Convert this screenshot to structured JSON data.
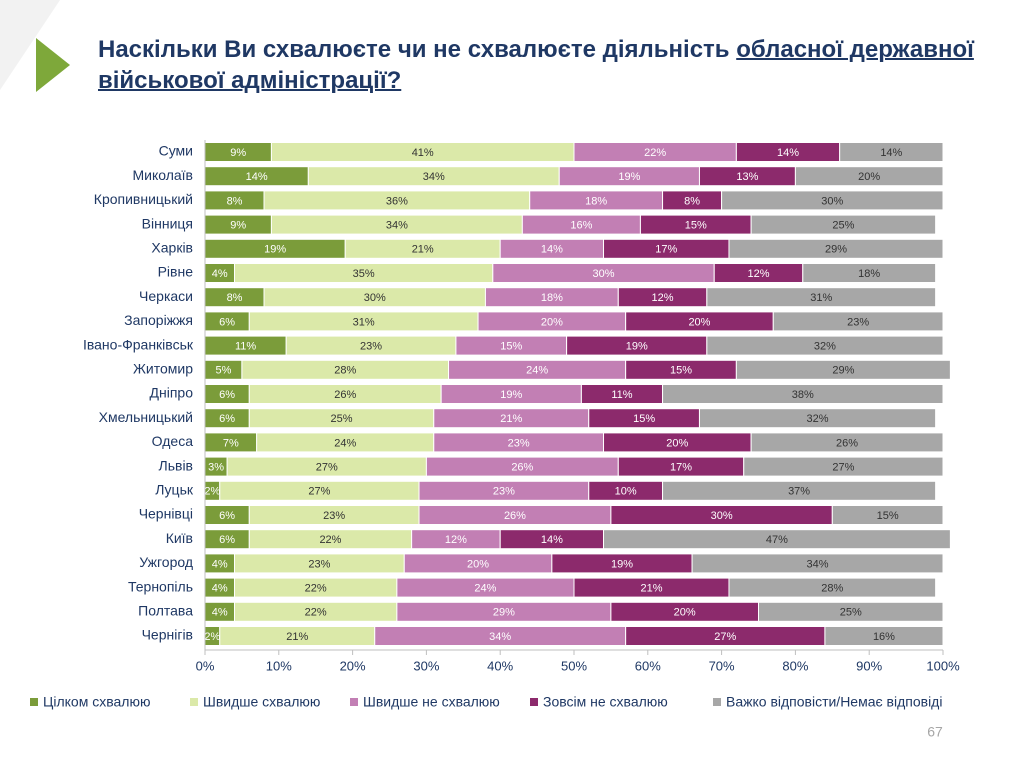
{
  "chart_data": {
    "type": "stacked-bar-horizontal",
    "title": "Наскільки Ви схвалюєте чи не схвалюєте діяльність",
    "title_underlined": "обласної державної військової адміністрації?",
    "categories": [
      "Суми",
      "Миколаїв",
      "Кропивницький",
      "Вінниця",
      "Харків",
      "Рівне",
      "Черкаси",
      "Запоріжжя",
      "Івано-Франківськ",
      "Житомир",
      "Дніпро",
      "Хмельницький",
      "Одеса",
      "Львів",
      "Луцьк",
      "Чернівці",
      "Київ",
      "Ужгород",
      "Тернопіль",
      "Полтава",
      "Чернігів"
    ],
    "series": [
      {
        "name": "Цілком схвалюю",
        "color": "#7b9c3a",
        "label_color": "#ffffff",
        "values": [
          9,
          14,
          8,
          9,
          19,
          4,
          8,
          6,
          11,
          5,
          6,
          6,
          7,
          3,
          2,
          6,
          6,
          4,
          4,
          4,
          2
        ],
        "value_labels": [
          "9%",
          "14%",
          "8%",
          "9%",
          "19%",
          "4%",
          "8%",
          "6%",
          "11%",
          "5%",
          "6%",
          "6%",
          "7%",
          "3%",
          "2%",
          "6%",
          "6%",
          "4%",
          "4%",
          "4%",
          "2%"
        ]
      },
      {
        "name": "Швидше схвалюю",
        "color": "#dbe9a9",
        "label_color": "#333333",
        "values": [
          41,
          34,
          36,
          34,
          21,
          35,
          30,
          31,
          23,
          28,
          26,
          25,
          24,
          27,
          27,
          23,
          22,
          23,
          22,
          22,
          21
        ],
        "value_labels": [
          "41%",
          "34%",
          "36%",
          "34%",
          "21%",
          "35%",
          "30%",
          "31%",
          "23%",
          "28%",
          "26%",
          "25%",
          "24%",
          "27%",
          "27%",
          "23%",
          "22%",
          "23%",
          "22%",
          "22%",
          "21%"
        ]
      },
      {
        "name": "Швидше не схвалюю",
        "color": "#c27fb4",
        "label_color": "#ffffff",
        "values": [
          22,
          19,
          18,
          16,
          14,
          30,
          18,
          20,
          15,
          24,
          19,
          21,
          23,
          26,
          23,
          26,
          12,
          20,
          24,
          29,
          34
        ],
        "value_labels": [
          "22%",
          "19%",
          "18%",
          "16%",
          "14%",
          "30%",
          "18%",
          "20%",
          "15%",
          "24%",
          "19%",
          "21%",
          "23%",
          "26%",
          "23%",
          "26%",
          "12%",
          "20%",
          "24%",
          "29%",
          "34%"
        ]
      },
      {
        "name": "Зовсім не схвалюю",
        "color": "#8c2a6c",
        "label_color": "#ffffff",
        "values": [
          14,
          13,
          8,
          15,
          17,
          12,
          12,
          20,
          19,
          15,
          11,
          15,
          20,
          17,
          10,
          30,
          14,
          19,
          21,
          20,
          27
        ],
        "value_labels": [
          "14%",
          "13%",
          "8%",
          "15%",
          "17%",
          "12%",
          "12%",
          "20%",
          "19%",
          "15%",
          "11%",
          "15%",
          "20%",
          "17%",
          "10%",
          "30%",
          "14%",
          "19%",
          "21%",
          "20%",
          "27%"
        ]
      },
      {
        "name": "Важко відповісти/Немає відповіді",
        "color": "#a7a7a7",
        "label_color": "#333333",
        "values": [
          14,
          20,
          30,
          25,
          29,
          18,
          31,
          23,
          32,
          29,
          38,
          32,
          26,
          27,
          37,
          15,
          47,
          34,
          28,
          25,
          16
        ],
        "value_labels": [
          "14%",
          "20%",
          "30%",
          "25%",
          "29%",
          "18%",
          "31%",
          "23%",
          "32%",
          "29%",
          "38%",
          "32%",
          "26%",
          "27%",
          "37%",
          "15%",
          "47%",
          "34%",
          "28%",
          "25%",
          "16%"
        ]
      }
    ],
    "xlim": [
      0,
      100
    ],
    "xticks": [
      {
        "value": 0,
        "label": "0%"
      },
      {
        "value": 10,
        "label": "10%"
      },
      {
        "value": 20,
        "label": "20%"
      },
      {
        "value": 30,
        "label": "30%"
      },
      {
        "value": 40,
        "label": "40%"
      },
      {
        "value": 50,
        "label": "50%"
      },
      {
        "value": 60,
        "label": "60%"
      },
      {
        "value": 70,
        "label": "70%"
      },
      {
        "value": 80,
        "label": "80%"
      },
      {
        "value": 90,
        "label": "90%"
      },
      {
        "value": 100,
        "label": "100%"
      }
    ],
    "grid": false,
    "legend": "bottom"
  },
  "page_number": "67"
}
